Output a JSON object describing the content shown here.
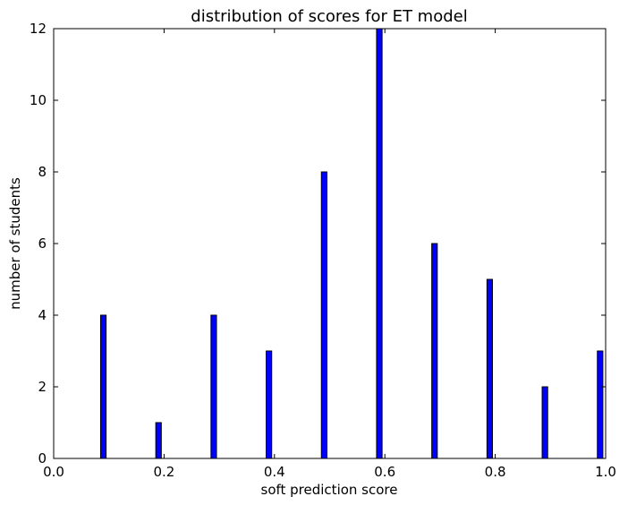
{
  "chart_data": {
    "type": "bar",
    "title": "distribution of scores for ET model",
    "xlabel": "soft prediction score",
    "ylabel": "number of students",
    "xlim": [
      0.0,
      1.0
    ],
    "ylim": [
      0,
      12
    ],
    "xticks": [
      "0.0",
      "0.2",
      "0.4",
      "0.6",
      "0.8",
      "1.0"
    ],
    "yticks": [
      "0",
      "2",
      "4",
      "6",
      "8",
      "10",
      "12"
    ],
    "bar_width": 0.01,
    "bars": [
      {
        "x": 0.09,
        "value": 4
      },
      {
        "x": 0.19,
        "value": 1
      },
      {
        "x": 0.29,
        "value": 4
      },
      {
        "x": 0.39,
        "value": 3
      },
      {
        "x": 0.49,
        "value": 8
      },
      {
        "x": 0.59,
        "value": 12
      },
      {
        "x": 0.69,
        "value": 6
      },
      {
        "x": 0.79,
        "value": 5
      },
      {
        "x": 0.89,
        "value": 2
      },
      {
        "x": 0.99,
        "value": 3
      }
    ],
    "bar_color": "#0000ff",
    "edge_color": "#000000",
    "grid": false
  }
}
